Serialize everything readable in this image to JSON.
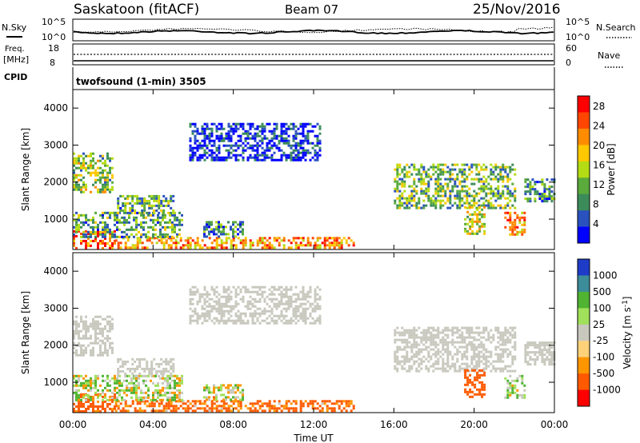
{
  "header": {
    "station": "Saskatoon (fitACF)",
    "beam": "Beam 07",
    "date": "25/Nov/2016"
  },
  "noise_panel": {
    "left_label": "N.Sky",
    "right_label": "N.Search",
    "yticks_left": [
      "10^5",
      "10^0"
    ],
    "yticks_right": [
      "10^5",
      "10^0"
    ]
  },
  "freq_panel": {
    "left_label_1": "Freq.",
    "left_label_2": "[MHz]",
    "right_label": "Nave",
    "yticks_left": [
      "18",
      "8"
    ],
    "yticks_right": [
      "60",
      "0"
    ]
  },
  "cpid_panel": {
    "label": "CPID",
    "text": "twofsound (1-min) 3505"
  },
  "colors": {
    "power_scale": [
      "#0000ff",
      "#2a52be",
      "#3c8c5a",
      "#5aaa3c",
      "#b4dc14",
      "#ffc800",
      "#ff8c00",
      "#ff4600",
      "#ff0000"
    ],
    "velocity_scale": [
      "#ff0000",
      "#ff5a00",
      "#ff9600",
      "#ffd27a",
      "#c8c8be",
      "#a0e05a",
      "#50b432",
      "#3c8c9a",
      "#1e3cc8"
    ],
    "ground_scatter": "#c8c8be"
  },
  "chart_data": [
    {
      "type": "heatmap",
      "title": "",
      "xlabel": "Time UT",
      "ylabel": "Slant Range [km]",
      "xticks": [
        "00:00",
        "04:00",
        "08:00",
        "12:00",
        "16:00",
        "20:00",
        "00:00"
      ],
      "yticks": [
        "1000",
        "2000",
        "3000",
        "4000"
      ],
      "ylim": [
        180,
        4500
      ],
      "colorbar": {
        "label": "Power [dB]",
        "ticks": [
          "4",
          "8",
          "12",
          "16",
          "20",
          "24",
          "28"
        ],
        "range": [
          0,
          30
        ]
      },
      "regions": [
        {
          "t0": 0.0,
          "t1": 2.1,
          "r0": 200,
          "r1": 700,
          "level": 0.85
        },
        {
          "t0": 2.1,
          "t1": 14.0,
          "r0": 250,
          "r1": 520,
          "level": 0.7
        },
        {
          "t0": 0.0,
          "t1": 5.5,
          "r0": 550,
          "r1": 1200,
          "level": 0.35
        },
        {
          "t0": 6.5,
          "t1": 8.5,
          "r0": 500,
          "r1": 950,
          "level": 0.3
        },
        {
          "t0": 0.0,
          "t1": 2.0,
          "r0": 1700,
          "r1": 2800,
          "level": 0.45
        },
        {
          "t0": 2.2,
          "t1": 5.0,
          "r0": 1150,
          "r1": 1650,
          "level": 0.35
        },
        {
          "t0": 5.8,
          "t1": 12.3,
          "r0": 2600,
          "r1": 3600,
          "level": 0.08
        },
        {
          "t0": 16.0,
          "t1": 22.0,
          "r0": 1300,
          "r1": 2500,
          "level": 0.4
        },
        {
          "t0": 19.5,
          "t1": 20.5,
          "r0": 600,
          "r1": 1350,
          "level": 0.55
        },
        {
          "t0": 21.5,
          "t1": 22.5,
          "r0": 600,
          "r1": 1200,
          "level": 0.75
        },
        {
          "t0": 22.5,
          "t1": 24.0,
          "r0": 1500,
          "r1": 2100,
          "level": 0.3
        }
      ]
    },
    {
      "type": "heatmap",
      "title": "",
      "xlabel": "Time UT",
      "ylabel": "Slant Range [km]",
      "xticks": [
        "00:00",
        "04:00",
        "08:00",
        "12:00",
        "16:00",
        "20:00",
        "00:00"
      ],
      "yticks": [
        "1000",
        "2000",
        "3000",
        "4000"
      ],
      "ylim": [
        180,
        4500
      ],
      "colorbar": {
        "label": "Velocity [m s^-1]",
        "ticks": [
          "-1000",
          "-500",
          "-100",
          "-25",
          "25",
          "100",
          "500",
          "1000"
        ],
        "range": [
          -1200,
          1200
        ]
      },
      "regions": [
        {
          "t0": 0.0,
          "t1": 2.1,
          "r0": 200,
          "r1": 700,
          "vel": -200
        },
        {
          "t0": 2.1,
          "t1": 14.0,
          "r0": 250,
          "r1": 520,
          "vel": -150
        },
        {
          "t0": 0.0,
          "t1": 5.5,
          "r0": 550,
          "r1": 1200,
          "vel": 50
        },
        {
          "t0": 6.5,
          "t1": 8.5,
          "r0": 500,
          "r1": 950,
          "vel": 20
        },
        {
          "t0": 0.0,
          "t1": 2.0,
          "r0": 1700,
          "r1": 2800,
          "vel": 0
        },
        {
          "t0": 2.2,
          "t1": 5.0,
          "r0": 1150,
          "r1": 1650,
          "vel": 0
        },
        {
          "t0": 5.8,
          "t1": 12.3,
          "r0": 2600,
          "r1": 3600,
          "vel": 0
        },
        {
          "t0": 16.0,
          "t1": 22.0,
          "r0": 1300,
          "r1": 2500,
          "vel": 0
        },
        {
          "t0": 19.5,
          "t1": 20.5,
          "r0": 600,
          "r1": 1350,
          "vel": -300
        },
        {
          "t0": 21.5,
          "t1": 22.5,
          "r0": 600,
          "r1": 1200,
          "vel": 80
        },
        {
          "t0": 22.5,
          "t1": 24.0,
          "r0": 1500,
          "r1": 2100,
          "vel": 0
        }
      ]
    }
  ]
}
